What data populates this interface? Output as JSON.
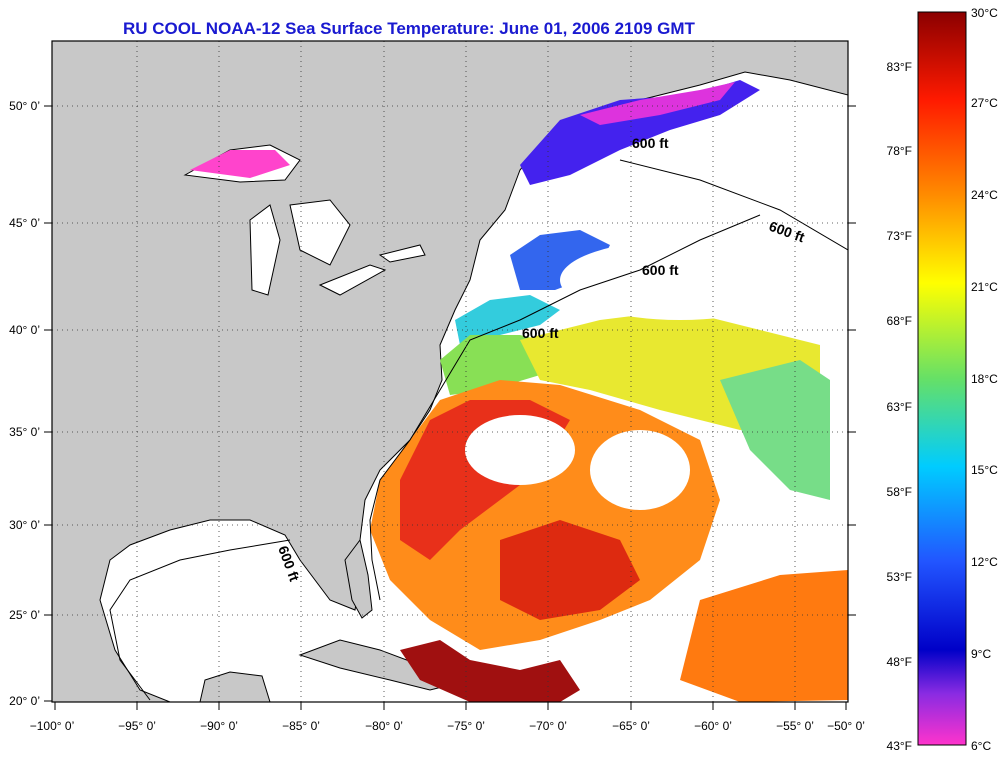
{
  "title": "RU COOL  NOAA-12  Sea Surface Temperature:  June 01, 2006 2109 GMT",
  "map": {
    "lon_range": [
      -100,
      -50
    ],
    "lat_range": [
      20,
      52
    ],
    "lon_ticks": [
      "−100° 0’",
      "−95° 0’",
      "−90° 0’",
      "−85° 0’",
      "−80° 0’",
      "−75° 0’",
      "−70° 0’",
      "−65° 0’",
      "−60° 0’",
      "−55° 0’",
      "−50° 0’"
    ],
    "lat_ticks": [
      "50° 0’",
      "45° 0’",
      "40° 0’",
      "35° 0’",
      "30° 0’",
      "25° 0’",
      "20° 0’"
    ],
    "land_color": "#c8c8c8",
    "cloud_color": "#ffffff",
    "isobath_label": "600 ft",
    "grid": "dotted"
  },
  "colorbar": {
    "celsius": [
      "30°C",
      "27°C",
      "24°C",
      "21°C",
      "18°C",
      "15°C",
      "12°C",
      "9°C",
      "6°C"
    ],
    "fahrenheit": [
      "83°F",
      "78°F",
      "73°F",
      "68°F",
      "63°F",
      "58°F",
      "53°F",
      "48°F",
      "43°F"
    ],
    "colors": [
      "#8b0000",
      "#ff0000",
      "#ff8c00",
      "#ffff00",
      "#66e066",
      "#00ccff",
      "#2255ff",
      "#0000cc",
      "#8a2be2",
      "#ff33cc"
    ]
  }
}
